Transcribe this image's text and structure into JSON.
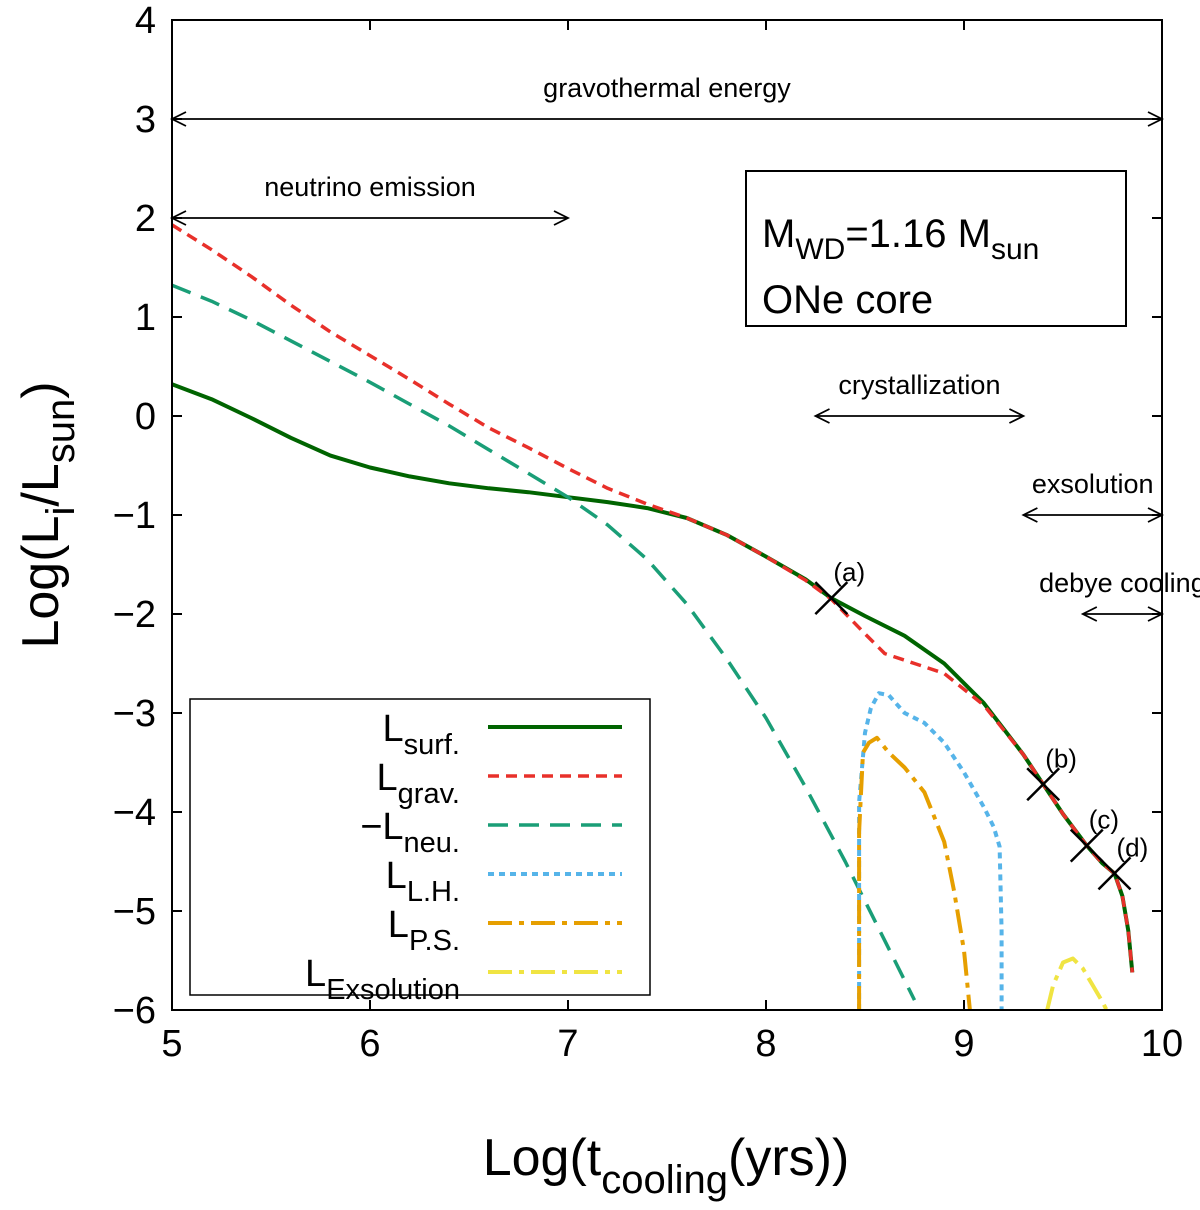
{
  "chart_data": {
    "type": "line",
    "title": "",
    "xlabel": {
      "main": "Log(t",
      "sub": "cooling",
      "rest": "(yrs))"
    },
    "ylabel": {
      "main": "Log(L",
      "sub": "i",
      "mid": "/L",
      "sub2": "sun",
      "rest": ")"
    },
    "xlim": [
      5,
      10
    ],
    "ylim": [
      -6,
      4
    ],
    "xticks": [
      5,
      6,
      7,
      8,
      9,
      10
    ],
    "yticks": [
      -6,
      -5,
      -4,
      -3,
      -2,
      -1,
      0,
      1,
      2,
      3,
      4
    ],
    "xtick_labels": [
      "5",
      "6",
      "7",
      "8",
      "9",
      "10"
    ],
    "ytick_labels": [
      "−6",
      "−5",
      "−4",
      "−3",
      "−2",
      "−1",
      "0",
      "1",
      "2",
      "3",
      "4"
    ],
    "info_box": {
      "line1": {
        "m": "M",
        "sub1": "WD",
        "mid": "=1.16 M",
        "sub2": "sun"
      },
      "line2": "ONe core"
    },
    "legend": {
      "position": "bottom-left",
      "entries": [
        {
          "key": "surf",
          "main": "L",
          "sub": "surf."
        },
        {
          "key": "grav",
          "main": "L",
          "sub": "grav."
        },
        {
          "key": "neu",
          "main": "−L",
          "sub": "neu."
        },
        {
          "key": "lh",
          "main": "L",
          "sub": "L.H."
        },
        {
          "key": "ps",
          "main": "L",
          "sub": "P.S."
        },
        {
          "key": "exs",
          "main": "L",
          "sub": "Exsolution"
        }
      ]
    },
    "series": [
      {
        "key": "surf",
        "name": "L_surf.",
        "color": "#006400",
        "style": "solid",
        "points": [
          [
            5.0,
            0.32
          ],
          [
            5.2,
            0.17
          ],
          [
            5.4,
            -0.02
          ],
          [
            5.6,
            -0.22
          ],
          [
            5.8,
            -0.4
          ],
          [
            6.0,
            -0.52
          ],
          [
            6.2,
            -0.61
          ],
          [
            6.4,
            -0.68
          ],
          [
            6.6,
            -0.73
          ],
          [
            6.8,
            -0.77
          ],
          [
            7.0,
            -0.82
          ],
          [
            7.2,
            -0.87
          ],
          [
            7.4,
            -0.93
          ],
          [
            7.6,
            -1.03
          ],
          [
            7.8,
            -1.2
          ],
          [
            8.0,
            -1.42
          ],
          [
            8.2,
            -1.65
          ],
          [
            8.33,
            -1.84
          ],
          [
            8.5,
            -2.02
          ],
          [
            8.7,
            -2.22
          ],
          [
            8.9,
            -2.5
          ],
          [
            9.1,
            -2.9
          ],
          [
            9.3,
            -3.42
          ],
          [
            9.4,
            -3.72
          ],
          [
            9.5,
            -4.02
          ],
          [
            9.62,
            -4.34
          ],
          [
            9.7,
            -4.52
          ],
          [
            9.76,
            -4.62
          ],
          [
            9.8,
            -4.85
          ],
          [
            9.83,
            -5.2
          ],
          [
            9.85,
            -5.62
          ]
        ]
      },
      {
        "key": "grav",
        "name": "L_grav.",
        "color": "#e8302a",
        "style": "dashed",
        "points": [
          [
            5.0,
            1.93
          ],
          [
            5.2,
            1.68
          ],
          [
            5.4,
            1.41
          ],
          [
            5.6,
            1.12
          ],
          [
            5.8,
            0.85
          ],
          [
            6.0,
            0.61
          ],
          [
            6.2,
            0.37
          ],
          [
            6.4,
            0.12
          ],
          [
            6.6,
            -0.12
          ],
          [
            6.8,
            -0.32
          ],
          [
            7.0,
            -0.53
          ],
          [
            7.2,
            -0.73
          ],
          [
            7.4,
            -0.89
          ],
          [
            7.6,
            -1.03
          ],
          [
            7.8,
            -1.2
          ],
          [
            8.0,
            -1.42
          ],
          [
            8.2,
            -1.66
          ],
          [
            8.33,
            -1.85
          ],
          [
            8.5,
            -2.2
          ],
          [
            8.6,
            -2.4
          ],
          [
            8.75,
            -2.5
          ],
          [
            8.9,
            -2.6
          ],
          [
            9.1,
            -2.92
          ],
          [
            9.3,
            -3.42
          ],
          [
            9.4,
            -3.72
          ],
          [
            9.5,
            -4.02
          ],
          [
            9.62,
            -4.34
          ],
          [
            9.7,
            -4.52
          ],
          [
            9.76,
            -4.62
          ],
          [
            9.8,
            -4.85
          ],
          [
            9.83,
            -5.2
          ],
          [
            9.85,
            -5.62
          ]
        ]
      },
      {
        "key": "neu",
        "name": "-L_neu.",
        "color": "#1a9e77",
        "style": "dashed",
        "points": [
          [
            5.0,
            1.32
          ],
          [
            5.2,
            1.16
          ],
          [
            5.4,
            0.97
          ],
          [
            5.6,
            0.76
          ],
          [
            5.8,
            0.55
          ],
          [
            6.0,
            0.34
          ],
          [
            6.2,
            0.12
          ],
          [
            6.4,
            -0.1
          ],
          [
            6.6,
            -0.34
          ],
          [
            6.8,
            -0.58
          ],
          [
            7.0,
            -0.82
          ],
          [
            7.2,
            -1.1
          ],
          [
            7.4,
            -1.45
          ],
          [
            7.6,
            -1.9
          ],
          [
            7.8,
            -2.45
          ],
          [
            8.0,
            -3.05
          ],
          [
            8.2,
            -3.75
          ],
          [
            8.4,
            -4.5
          ],
          [
            8.6,
            -5.3
          ],
          [
            8.75,
            -5.9
          ]
        ]
      },
      {
        "key": "lh",
        "name": "L_L.H.",
        "color": "#56b4e9",
        "style": "dotted",
        "points": [
          [
            8.47,
            -6.0
          ],
          [
            8.47,
            -3.9
          ],
          [
            8.5,
            -3.2
          ],
          [
            8.53,
            -2.95
          ],
          [
            8.57,
            -2.8
          ],
          [
            8.62,
            -2.82
          ],
          [
            8.7,
            -3.0
          ],
          [
            8.8,
            -3.1
          ],
          [
            8.9,
            -3.3
          ],
          [
            9.0,
            -3.6
          ],
          [
            9.1,
            -3.95
          ],
          [
            9.15,
            -4.15
          ],
          [
            9.18,
            -4.35
          ],
          [
            9.19,
            -5.2
          ],
          [
            9.19,
            -6.0
          ]
        ]
      },
      {
        "key": "ps",
        "name": "L_P.S.",
        "color": "#e69f00",
        "style": "dashdot",
        "points": [
          [
            8.47,
            -6.0
          ],
          [
            8.47,
            -4.2
          ],
          [
            8.49,
            -3.4
          ],
          [
            8.52,
            -3.3
          ],
          [
            8.56,
            -3.25
          ],
          [
            8.62,
            -3.4
          ],
          [
            8.7,
            -3.55
          ],
          [
            8.8,
            -3.8
          ],
          [
            8.9,
            -4.3
          ],
          [
            8.95,
            -4.8
          ],
          [
            9.0,
            -5.4
          ],
          [
            9.03,
            -6.0
          ]
        ]
      },
      {
        "key": "exs",
        "name": "L_Exsolution",
        "color": "#f0e442",
        "style": "dashdot",
        "points": [
          [
            9.42,
            -6.0
          ],
          [
            9.45,
            -5.75
          ],
          [
            9.5,
            -5.52
          ],
          [
            9.55,
            -5.48
          ],
          [
            9.6,
            -5.58
          ],
          [
            9.65,
            -5.75
          ],
          [
            9.7,
            -5.92
          ],
          [
            9.72,
            -6.0
          ]
        ]
      }
    ],
    "markers": [
      {
        "label": "(a)",
        "x": 8.33,
        "y": -1.84
      },
      {
        "label": "(b)",
        "x": 9.4,
        "y": -3.72
      },
      {
        "label": "(c)",
        "x": 9.62,
        "y": -4.34
      },
      {
        "label": "(d)",
        "x": 9.76,
        "y": -4.62
      }
    ],
    "ranges": [
      {
        "key": "gravothermal",
        "label": "gravothermal energy",
        "x1": 5.0,
        "x2": 10.0,
        "y": 3.0
      },
      {
        "key": "neutrino",
        "label": "neutrino emission",
        "x1": 5.0,
        "x2": 7.0,
        "y": 2.0
      },
      {
        "key": "crystallization",
        "label": "crystallization",
        "x1": 8.25,
        "x2": 9.3,
        "y": 0.0
      },
      {
        "key": "exsolution",
        "label": "exsolution",
        "x1": 9.3,
        "x2": 10.0,
        "y": -1.0
      },
      {
        "key": "debye",
        "label": "debye cooling",
        "x1": 9.6,
        "x2": 10.0,
        "y": -2.0
      }
    ]
  }
}
